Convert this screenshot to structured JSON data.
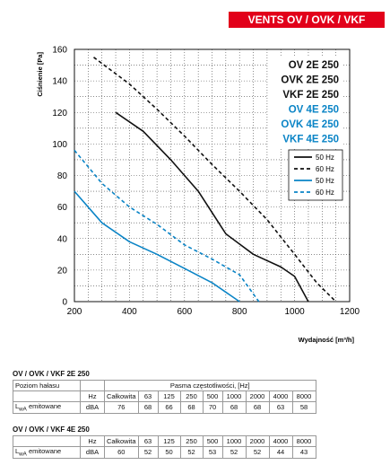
{
  "header": {
    "title": "VENTS OV / OVK / VKF"
  },
  "chart_data": {
    "type": "line",
    "xlabel": "Wydajność [m³/h]",
    "ylabel": "Ciśnienie [Pa]",
    "xlim": [
      200,
      1200
    ],
    "ylim": [
      0,
      160
    ],
    "x_ticks": [
      200,
      400,
      600,
      800,
      1000,
      1200
    ],
    "y_ticks": [
      0,
      20,
      40,
      60,
      80,
      100,
      120,
      140,
      160
    ],
    "grid": true,
    "models": [
      {
        "text": "OV 2E 250",
        "color": "#111111"
      },
      {
        "text": "OVK 2E 250",
        "color": "#111111"
      },
      {
        "text": "VKF 2E 250",
        "color": "#111111"
      },
      {
        "text": "OV 4E 250",
        "color": "#0a84c6"
      },
      {
        "text": "OVK 4E 250",
        "color": "#0a84c6"
      },
      {
        "text": "VKF 4E 250",
        "color": "#0a84c6"
      }
    ],
    "legend": [
      {
        "name": "50 Hz",
        "color": "#111111",
        "style": "solid"
      },
      {
        "name": "60 Hz",
        "color": "#111111",
        "style": "dashed"
      },
      {
        "name": "50 Hz",
        "color": "#0a84c6",
        "style": "solid"
      },
      {
        "name": "60 Hz",
        "color": "#0a84c6",
        "style": "dashed"
      }
    ],
    "series": [
      {
        "color": "#111111",
        "style": "solid",
        "points": [
          [
            350,
            120
          ],
          [
            450,
            108
          ],
          [
            550,
            90
          ],
          [
            650,
            70
          ],
          [
            750,
            43
          ],
          [
            850,
            30
          ],
          [
            950,
            22
          ],
          [
            1000,
            16
          ],
          [
            1050,
            0
          ]
        ]
      },
      {
        "color": "#111111",
        "style": "dashed",
        "points": [
          [
            270,
            155
          ],
          [
            400,
            138
          ],
          [
            500,
            122
          ],
          [
            600,
            105
          ],
          [
            700,
            87
          ],
          [
            800,
            70
          ],
          [
            900,
            52
          ],
          [
            1000,
            30
          ],
          [
            1080,
            12
          ],
          [
            1150,
            0
          ]
        ]
      },
      {
        "color": "#0a84c6",
        "style": "solid",
        "points": [
          [
            200,
            70
          ],
          [
            300,
            50
          ],
          [
            400,
            38
          ],
          [
            500,
            30
          ],
          [
            600,
            21
          ],
          [
            700,
            12
          ],
          [
            800,
            0
          ]
        ]
      },
      {
        "color": "#0a84c6",
        "style": "dashed",
        "points": [
          [
            200,
            96
          ],
          [
            300,
            75
          ],
          [
            400,
            60
          ],
          [
            500,
            49
          ],
          [
            600,
            36
          ],
          [
            700,
            27
          ],
          [
            800,
            17
          ],
          [
            870,
            0
          ]
        ]
      }
    ]
  },
  "tables": [
    {
      "title": "OV / OVK / VKF 2E 250",
      "row1_label": "Poziom hałasu",
      "row1_header": "Pasma częstotliwości, [Hz]",
      "row2": [
        "Hz",
        "Całkowita",
        "63",
        "125",
        "250",
        "500",
        "1000",
        "2000",
        "4000",
        "8000"
      ],
      "row3_label": "L",
      "row3_sub": "wA",
      "row3_label_rest": " emitowane",
      "row3": [
        "dBA",
        "76",
        "68",
        "66",
        "68",
        "70",
        "68",
        "68",
        "63",
        "58"
      ]
    },
    {
      "title": "OV / OVK / VKF 4E 250",
      "row2": [
        "Hz",
        "Całkowita",
        "63",
        "125",
        "250",
        "500",
        "1000",
        "2000",
        "4000",
        "8000"
      ],
      "row3_label": "L",
      "row3_sub": "wA",
      "row3_label_rest": " emitowane",
      "row3": [
        "dBA",
        "60",
        "52",
        "50",
        "52",
        "53",
        "52",
        "52",
        "44",
        "43"
      ]
    }
  ]
}
